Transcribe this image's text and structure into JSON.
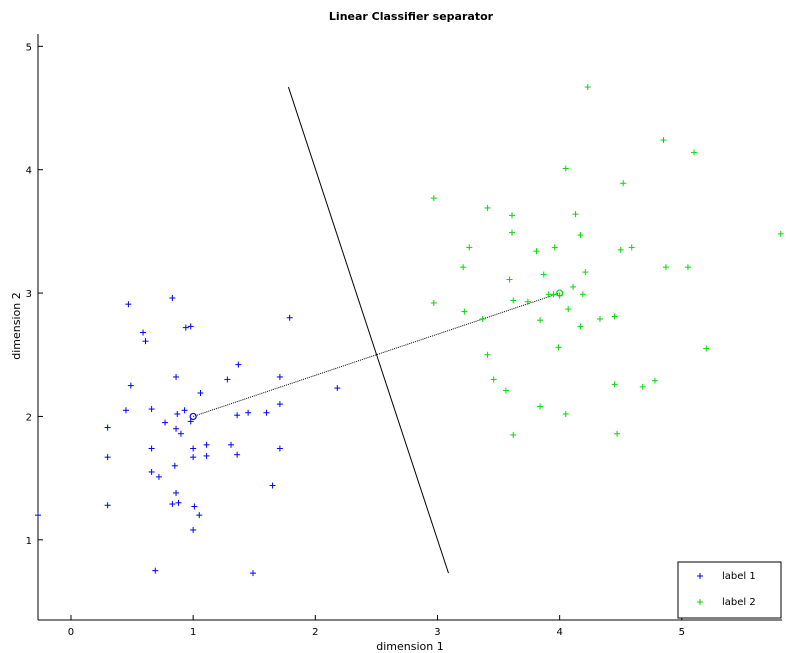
{
  "chart_data": {
    "type": "scatter",
    "title": "Linear Classifier separator",
    "xlabel": "dimension 1",
    "ylabel": "dimension 2",
    "xlim": [
      -0.27,
      5.82
    ],
    "ylim": [
      0.35,
      5.1
    ],
    "xticks": [
      "0",
      "1",
      "2",
      "3",
      "4",
      "5"
    ],
    "yticks": [
      "1",
      "2",
      "3",
      "4",
      "5"
    ],
    "grid": false,
    "legend_position": "bottom-right",
    "series": [
      {
        "name": "label 1",
        "color": "#0000ff",
        "marker": "plus",
        "points": [
          [
            0.47,
            2.91
          ],
          [
            0.83,
            2.96
          ],
          [
            0.59,
            2.68
          ],
          [
            0.61,
            2.61
          ],
          [
            0.94,
            2.72
          ],
          [
            0.98,
            2.73
          ],
          [
            1.79,
            2.8
          ],
          [
            0.86,
            2.32
          ],
          [
            1.37,
            2.42
          ],
          [
            0.49,
            2.25
          ],
          [
            1.28,
            2.3
          ],
          [
            1.71,
            2.32
          ],
          [
            1.06,
            2.19
          ],
          [
            2.18,
            2.23
          ],
          [
            1.71,
            2.1
          ],
          [
            0.45,
            2.05
          ],
          [
            0.66,
            2.06
          ],
          [
            0.87,
            2.02
          ],
          [
            0.93,
            2.05
          ],
          [
            0.98,
            1.96
          ],
          [
            1.36,
            2.01
          ],
          [
            1.45,
            2.03
          ],
          [
            1.6,
            2.03
          ],
          [
            0.77,
            1.95
          ],
          [
            0.86,
            1.9
          ],
          [
            0.9,
            1.86
          ],
          [
            0.3,
            1.91
          ],
          [
            1.11,
            1.77
          ],
          [
            1.31,
            1.77
          ],
          [
            1.0,
            1.74
          ],
          [
            1.71,
            1.74
          ],
          [
            0.66,
            1.74
          ],
          [
            0.3,
            1.67
          ],
          [
            1.0,
            1.67
          ],
          [
            1.11,
            1.68
          ],
          [
            1.36,
            1.69
          ],
          [
            0.85,
            1.6
          ],
          [
            0.66,
            1.55
          ],
          [
            0.72,
            1.51
          ],
          [
            0.86,
            1.38
          ],
          [
            1.65,
            1.44
          ],
          [
            0.3,
            1.28
          ],
          [
            0.83,
            1.29
          ],
          [
            0.88,
            1.3
          ],
          [
            1.01,
            1.27
          ],
          [
            1.05,
            1.2
          ],
          [
            1.0,
            1.08
          ],
          [
            0.69,
            0.75
          ],
          [
            1.49,
            0.73
          ],
          [
            -0.27,
            1.2
          ]
        ]
      },
      {
        "name": "label 2",
        "color": "#00dd00",
        "marker": "plus",
        "points": [
          [
            4.23,
            4.67
          ],
          [
            4.85,
            4.24
          ],
          [
            5.1,
            4.14
          ],
          [
            4.05,
            4.01
          ],
          [
            4.52,
            3.89
          ],
          [
            2.97,
            3.77
          ],
          [
            3.41,
            3.69
          ],
          [
            3.61,
            3.63
          ],
          [
            4.13,
            3.64
          ],
          [
            5.81,
            3.48
          ],
          [
            3.61,
            3.49
          ],
          [
            4.17,
            3.47
          ],
          [
            3.26,
            3.37
          ],
          [
            3.81,
            3.34
          ],
          [
            3.96,
            3.37
          ],
          [
            4.5,
            3.35
          ],
          [
            4.59,
            3.37
          ],
          [
            3.21,
            3.21
          ],
          [
            4.87,
            3.21
          ],
          [
            5.05,
            3.21
          ],
          [
            3.59,
            3.11
          ],
          [
            3.87,
            3.15
          ],
          [
            4.21,
            3.17
          ],
          [
            4.11,
            3.05
          ],
          [
            3.91,
            2.99
          ],
          [
            3.95,
            2.99
          ],
          [
            4.0,
            2.98
          ],
          [
            4.19,
            2.99
          ],
          [
            3.62,
            2.94
          ],
          [
            3.74,
            2.93
          ],
          [
            2.97,
            2.92
          ],
          [
            3.22,
            2.85
          ],
          [
            4.07,
            2.87
          ],
          [
            3.37,
            2.79
          ],
          [
            3.84,
            2.78
          ],
          [
            4.33,
            2.79
          ],
          [
            4.45,
            2.81
          ],
          [
            4.17,
            2.73
          ],
          [
            3.99,
            2.56
          ],
          [
            5.2,
            2.55
          ],
          [
            3.41,
            2.5
          ],
          [
            3.46,
            2.3
          ],
          [
            4.78,
            2.29
          ],
          [
            3.56,
            2.21
          ],
          [
            4.45,
            2.26
          ],
          [
            4.68,
            2.24
          ],
          [
            3.84,
            2.08
          ],
          [
            4.05,
            2.02
          ],
          [
            3.62,
            1.85
          ],
          [
            4.47,
            1.86
          ]
        ]
      }
    ],
    "centers": [
      {
        "series": "label 1",
        "x": 1.0,
        "y": 2.0
      },
      {
        "series": "label 2",
        "x": 4.0,
        "y": 3.0
      }
    ],
    "separator_line": {
      "x1": 1.78,
      "y1": 4.67,
      "x2": 3.09,
      "y2": 0.73
    },
    "center_connector": {
      "x1": 1.0,
      "y1": 2.0,
      "x2": 4.0,
      "y2": 3.0
    }
  }
}
